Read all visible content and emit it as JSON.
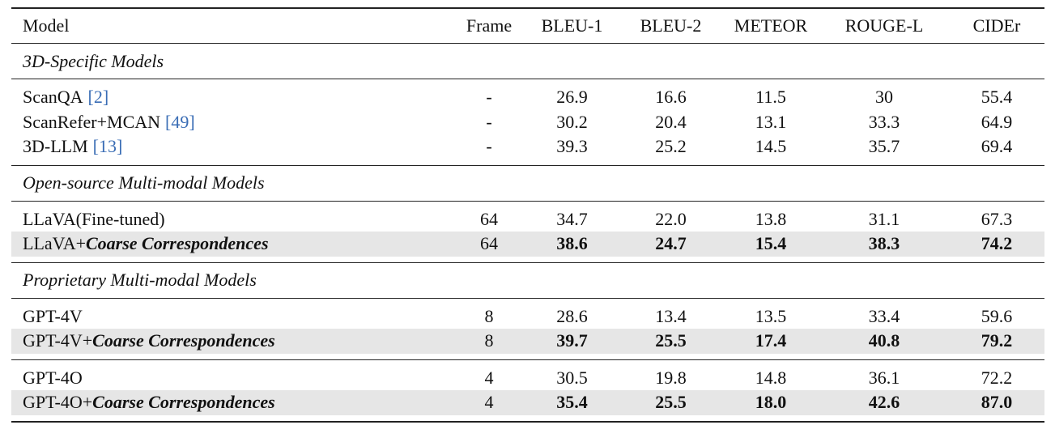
{
  "table": {
    "header": [
      "Model",
      "Frame",
      "BLEU-1",
      "BLEU-2",
      "METEOR",
      "ROUGE-L",
      "CIDEr"
    ],
    "sections": [
      {
        "title": "3D-Specific Models",
        "rows": [
          {
            "model": "ScanQA",
            "cite": "[2]",
            "frame": "-",
            "scores": [
              "26.9",
              "16.6",
              "11.5",
              "30",
              "55.4"
            ]
          },
          {
            "model": "ScanRefer+MCAN",
            "cite": "[49]",
            "frame": "-",
            "scores": [
              "30.2",
              "20.4",
              "13.1",
              "33.3",
              "64.9"
            ]
          },
          {
            "model": "3D-LLM",
            "cite": "[13]",
            "frame": "-",
            "scores": [
              "39.3",
              "25.2",
              "14.5",
              "35.7",
              "69.4"
            ]
          }
        ]
      },
      {
        "title": "Open-source Multi-modal Models",
        "rows": [
          {
            "model": "LLaVA(Fine-tuned)",
            "frame": "64",
            "scores": [
              "34.7",
              "22.0",
              "13.8",
              "31.1",
              "67.3"
            ]
          },
          {
            "model": "LLaVA+",
            "method": "Coarse Correspondences",
            "highlight": true,
            "frame": "64",
            "scores": [
              "38.6",
              "24.7",
              "15.4",
              "38.3",
              "74.2"
            ]
          }
        ]
      },
      {
        "title": "Proprietary Multi-modal Models",
        "rows": [
          {
            "model": "GPT-4V",
            "frame": "8",
            "scores": [
              "28.6",
              "13.4",
              "13.5",
              "33.4",
              "59.6"
            ]
          },
          {
            "model": "GPT-4V+",
            "method": "Coarse Correspondences",
            "highlight": true,
            "frame": "8",
            "scores": [
              "39.7",
              "25.5",
              "17.4",
              "40.8",
              "79.2"
            ]
          }
        ]
      },
      {
        "rows": [
          {
            "model": "GPT-4O",
            "frame": "4",
            "scores": [
              "30.5",
              "19.8",
              "14.8",
              "36.1",
              "72.2"
            ]
          },
          {
            "model": "GPT-4O+",
            "method": "Coarse Correspondences",
            "highlight": true,
            "frame": "4",
            "scores": [
              "35.4",
              "25.5",
              "18.0",
              "42.6",
              "87.0"
            ]
          }
        ]
      }
    ]
  }
}
